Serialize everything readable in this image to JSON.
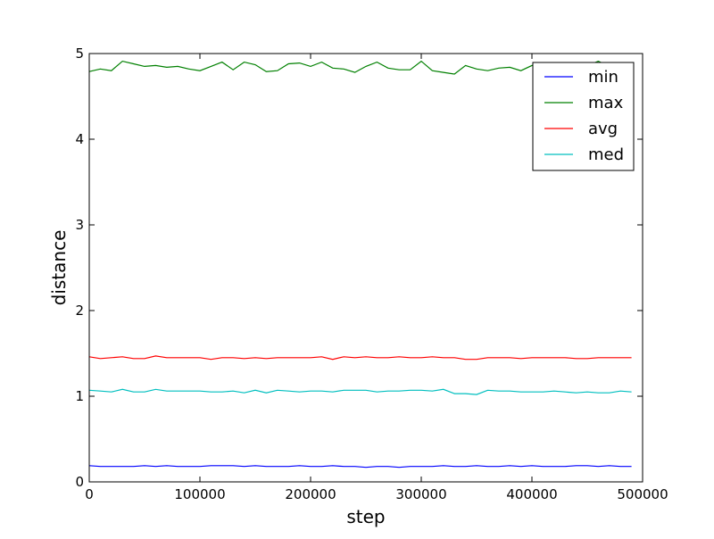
{
  "chart_data": {
    "type": "line",
    "title": "",
    "xlabel": "step",
    "ylabel": "distance",
    "xlim": [
      0,
      500000
    ],
    "ylim": [
      0,
      5
    ],
    "x_ticks": [
      0,
      100000,
      200000,
      300000,
      400000,
      500000
    ],
    "x_tick_labels": [
      "0",
      "100000",
      "200000",
      "300000",
      "400000",
      "500000"
    ],
    "y_ticks": [
      0,
      1,
      2,
      3,
      4,
      5
    ],
    "y_tick_labels": [
      "0",
      "1",
      "2",
      "3",
      "4",
      "5"
    ],
    "grid": false,
    "legend_position": "top-right",
    "x": [
      0,
      10000,
      20000,
      30000,
      40000,
      50000,
      60000,
      70000,
      80000,
      90000,
      100000,
      110000,
      120000,
      130000,
      140000,
      150000,
      160000,
      170000,
      180000,
      190000,
      200000,
      210000,
      220000,
      230000,
      240000,
      250000,
      260000,
      270000,
      280000,
      290000,
      300000,
      310000,
      320000,
      330000,
      340000,
      350000,
      360000,
      370000,
      380000,
      390000,
      400000,
      410000,
      420000,
      430000,
      440000,
      450000,
      460000,
      470000,
      480000,
      490000
    ],
    "series": [
      {
        "name": "min",
        "color": "#0000ff",
        "values": [
          0.19,
          0.18,
          0.18,
          0.18,
          0.18,
          0.19,
          0.18,
          0.19,
          0.18,
          0.18,
          0.18,
          0.19,
          0.19,
          0.19,
          0.18,
          0.19,
          0.18,
          0.18,
          0.18,
          0.19,
          0.18,
          0.18,
          0.19,
          0.18,
          0.18,
          0.17,
          0.18,
          0.18,
          0.17,
          0.18,
          0.18,
          0.18,
          0.19,
          0.18,
          0.18,
          0.19,
          0.18,
          0.18,
          0.19,
          0.18,
          0.19,
          0.18,
          0.18,
          0.18,
          0.19,
          0.19,
          0.18,
          0.19,
          0.18,
          0.18
        ]
      },
      {
        "name": "max",
        "color": "#008000",
        "values": [
          4.79,
          4.82,
          4.8,
          4.91,
          4.88,
          4.85,
          4.86,
          4.84,
          4.85,
          4.82,
          4.8,
          4.85,
          4.9,
          4.81,
          4.9,
          4.87,
          4.79,
          4.8,
          4.88,
          4.89,
          4.85,
          4.9,
          4.83,
          4.82,
          4.78,
          4.85,
          4.9,
          4.83,
          4.81,
          4.81,
          4.91,
          4.8,
          4.78,
          4.76,
          4.86,
          4.82,
          4.8,
          4.83,
          4.84,
          4.8,
          4.86,
          4.87,
          4.84,
          4.85,
          4.82,
          4.86,
          4.91,
          4.85,
          4.87,
          4.83
        ]
      },
      {
        "name": "avg",
        "color": "#ff0000",
        "values": [
          1.46,
          1.44,
          1.45,
          1.46,
          1.44,
          1.44,
          1.47,
          1.45,
          1.45,
          1.45,
          1.45,
          1.43,
          1.45,
          1.45,
          1.44,
          1.45,
          1.44,
          1.45,
          1.45,
          1.45,
          1.45,
          1.46,
          1.43,
          1.46,
          1.45,
          1.46,
          1.45,
          1.45,
          1.46,
          1.45,
          1.45,
          1.46,
          1.45,
          1.45,
          1.43,
          1.43,
          1.45,
          1.45,
          1.45,
          1.44,
          1.45,
          1.45,
          1.45,
          1.45,
          1.44,
          1.44,
          1.45,
          1.45,
          1.45,
          1.45
        ]
      },
      {
        "name": "med",
        "color": "#00bfbf",
        "values": [
          1.07,
          1.06,
          1.05,
          1.08,
          1.05,
          1.05,
          1.08,
          1.06,
          1.06,
          1.06,
          1.06,
          1.05,
          1.05,
          1.06,
          1.04,
          1.07,
          1.04,
          1.07,
          1.06,
          1.05,
          1.06,
          1.06,
          1.05,
          1.07,
          1.07,
          1.07,
          1.05,
          1.06,
          1.06,
          1.07,
          1.07,
          1.06,
          1.08,
          1.03,
          1.03,
          1.02,
          1.07,
          1.06,
          1.06,
          1.05,
          1.05,
          1.05,
          1.06,
          1.05,
          1.04,
          1.05,
          1.04,
          1.04,
          1.06,
          1.05
        ]
      }
    ]
  }
}
